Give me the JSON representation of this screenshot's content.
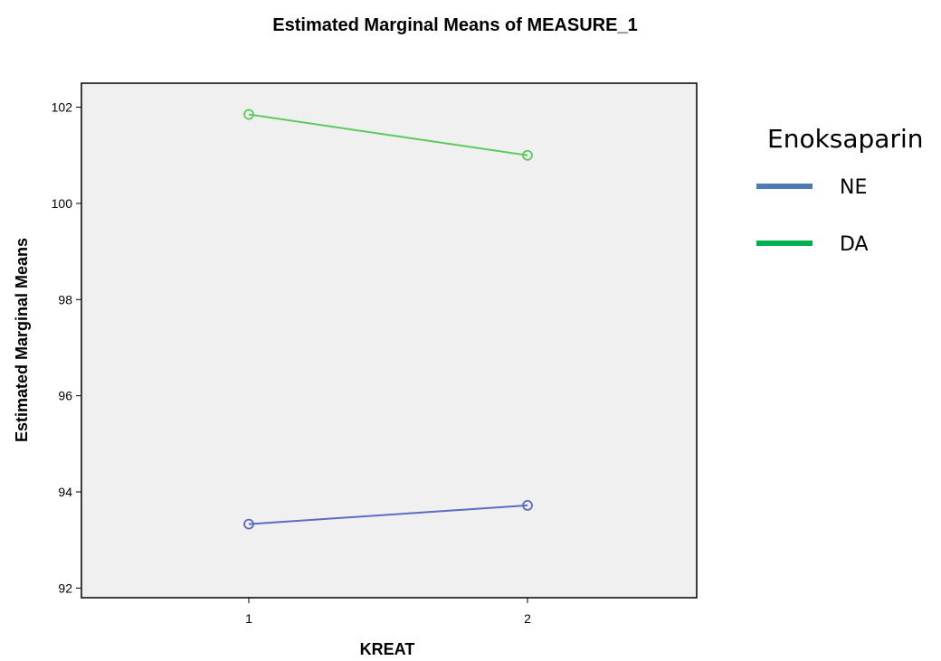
{
  "chart_data": {
    "type": "line",
    "title": "Estimated Marginal Means of MEASURE_1",
    "xlabel": "KREAT",
    "ylabel": "Estimated Marginal Means",
    "categories": [
      "1",
      "2"
    ],
    "ylim": [
      91.8,
      102.5
    ],
    "yticks": [
      92,
      94,
      96,
      98,
      100,
      102
    ],
    "grid": false,
    "legend": {
      "title": "Enoksaparin",
      "placement": "right"
    },
    "series": [
      {
        "name": "NE",
        "values": [
          93.33,
          93.72
        ],
        "color": "#5a6cbf",
        "legend_color": "#4f7bb5"
      },
      {
        "name": "DA",
        "values": [
          101.85,
          101.0
        ],
        "color": "#5cc95c",
        "legend_color": "#00b050"
      }
    ]
  }
}
